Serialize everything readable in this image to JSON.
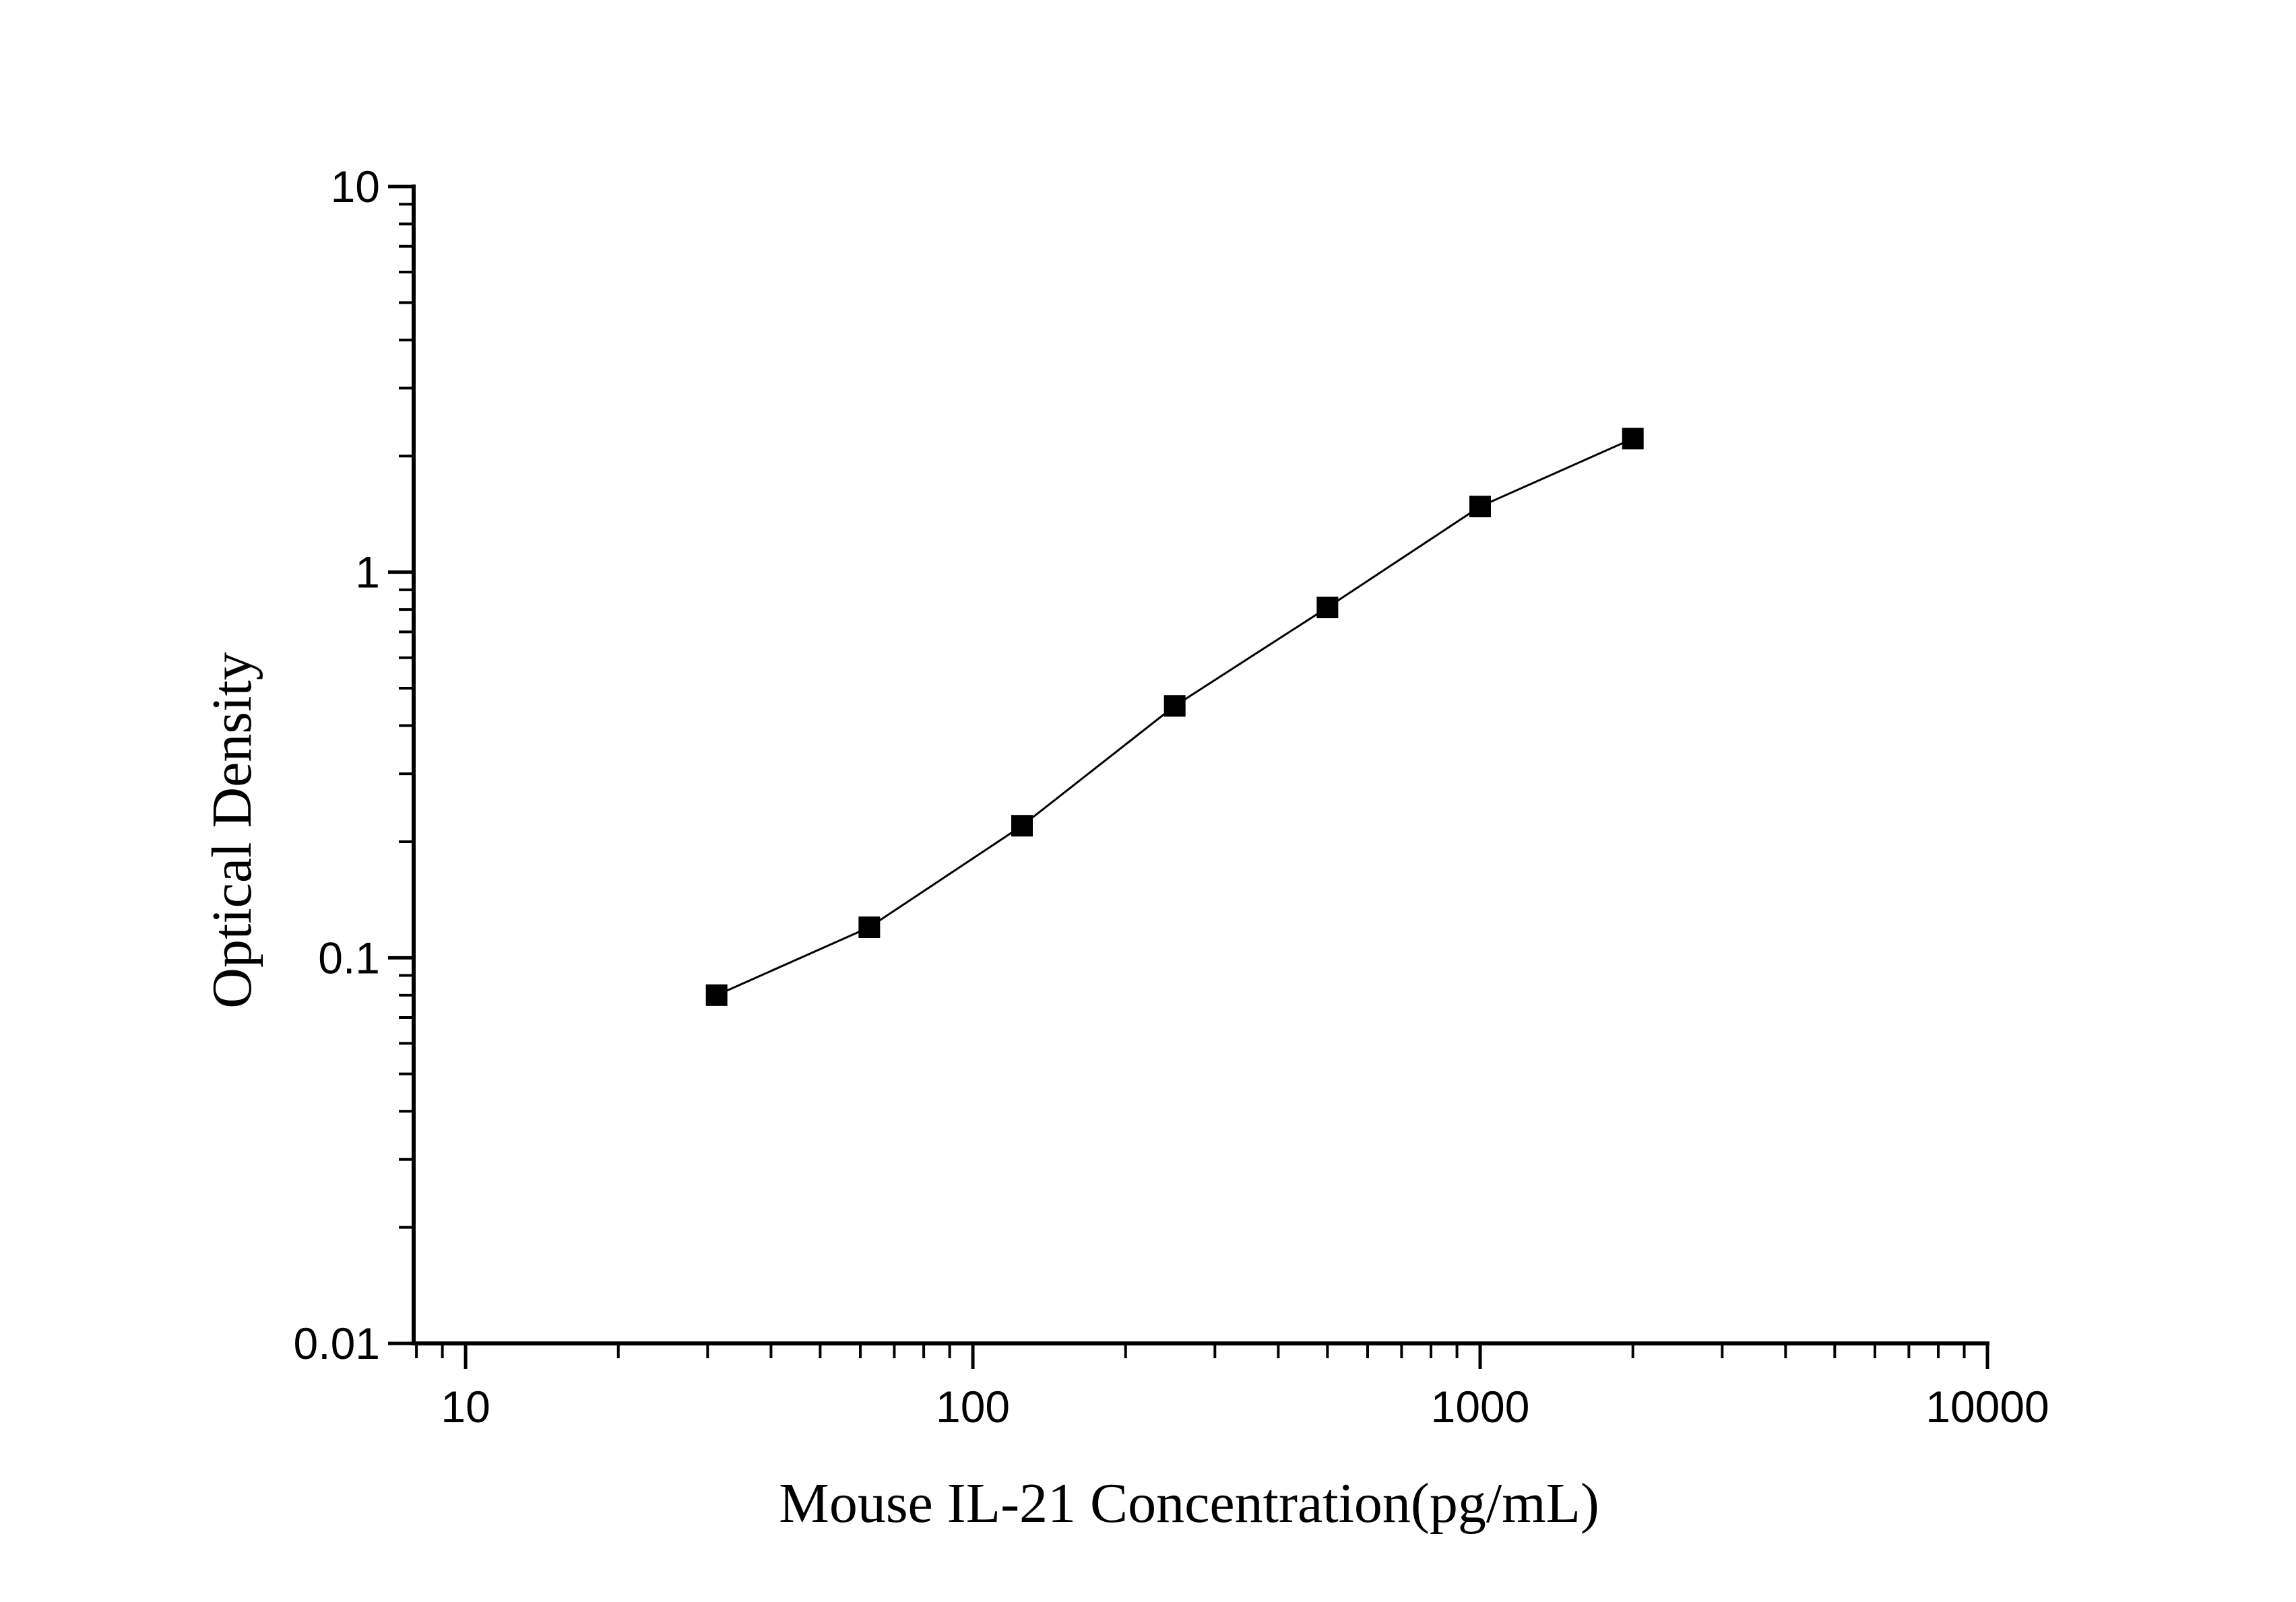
{
  "chart_data": {
    "type": "line",
    "title": "",
    "xlabel": "Mouse IL-21 Concentration(pg/mL)",
    "ylabel": "Optical Density",
    "x_scale": "log",
    "y_scale": "log",
    "xlim": [
      7.9,
      10000
    ],
    "ylim": [
      0.01,
      10
    ],
    "x_ticks": [
      {
        "value": 10,
        "label": "10"
      },
      {
        "value": 100,
        "label": "100"
      },
      {
        "value": 1000,
        "label": "1000"
      },
      {
        "value": 10000,
        "label": "10000"
      }
    ],
    "y_ticks": [
      {
        "value": 0.01,
        "label": "0.01"
      },
      {
        "value": 0.1,
        "label": "0.1"
      },
      {
        "value": 1,
        "label": "1"
      },
      {
        "value": 10,
        "label": "10"
      }
    ],
    "grid": false,
    "legend": "none",
    "marker": "square",
    "color": "#000000",
    "series": [
      {
        "name": "",
        "x": [
          31.25,
          62.5,
          125,
          250,
          500,
          1000,
          2000
        ],
        "y": [
          0.08,
          0.12,
          0.22,
          0.45,
          0.81,
          1.48,
          2.22
        ]
      }
    ]
  }
}
